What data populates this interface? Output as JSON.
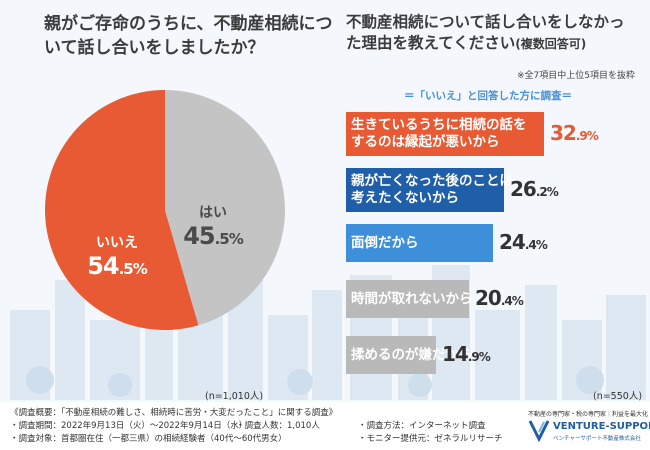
{
  "left_chart": {
    "title": "親がご存命のうちに、不動産相続について話し合いをしましたか？",
    "n_label": "(n=1,010人)"
  },
  "right_chart": {
    "title": "不動産相続について話し合いをしなかった理由を教えてください",
    "title_note": "(複数回答可)",
    "top_note": "※全7項目中上位5項目を抜粋",
    "subject": "＝「いいえ」と回答した方に調査＝",
    "n_label": "(n=550人)"
  },
  "chart_data": [
    {
      "type": "pie",
      "title": "親がご存命のうちに、不動産相続について話し合いをしましたか？",
      "slices": [
        {
          "label": "いいえ",
          "value": 54.5,
          "value_int": "54",
          "value_dec": ".5%",
          "color": "#e85a33"
        },
        {
          "label": "はい",
          "value": 45.5,
          "value_int": "45",
          "value_dec": ".5%",
          "color": "#c4c4c4"
        }
      ]
    },
    {
      "type": "bar",
      "orientation": "horizontal",
      "title": "不動産相続について話し合いをしなかった理由を教えてください",
      "xlim": [
        0,
        35
      ],
      "bars": [
        {
          "lines": [
            "生きているうちに相続の話を",
            "するのは縁起が悪いから"
          ],
          "value": 32.9,
          "value_int": "32",
          "value_dec": ".9%",
          "color": "#e85a33"
        },
        {
          "lines": [
            "親が亡くなった後のことは",
            "考えたくないから"
          ],
          "value": 26.2,
          "value_int": "26",
          "value_dec": ".2%",
          "color": "#1f5ea8"
        },
        {
          "lines": [
            "面倒だから"
          ],
          "value": 24.4,
          "value_int": "24",
          "value_dec": ".4%",
          "color": "#3e8fd9"
        },
        {
          "lines": [
            "時間が取れないから"
          ],
          "value": 20.4,
          "value_int": "20",
          "value_dec": ".4%",
          "color": "#b9b9b9"
        },
        {
          "lines": [
            "揉めるのが嫌だから"
          ],
          "value": 14.9,
          "value_int": "14",
          "value_dec": ".9%",
          "color": "#b9b9b9"
        }
      ]
    }
  ],
  "footer": {
    "survey_overview": "《調査概要：「不動産相続の難しさ、相続時に苦労・大変だったこと」に関する調査》",
    "period": "・調査期間：2022年9月13日（火）〜2022年9月14日（水）",
    "respondents": "・調査人数：1,010人",
    "target": "・調査対象：首都圏在住（一都三県）の相続経験者（40代〜60代男女）",
    "method": "・調査方法：インターネット調査",
    "monitor": "・モニター提供元：ゼネラルリサーチ"
  },
  "logo": {
    "tagline": "不動産の専門家・税の専門家｜利益を最大化",
    "name": "VENTURE-SUPPORT",
    "company": "ベンチャーサポート不動産株式会社"
  },
  "colors": {
    "accent_red": "#e85a33",
    "dark_blue": "#1f5ea8",
    "mid_blue": "#3e8fd9",
    "gray": "#b9b9b9",
    "subject_blue": "#4a8fd6"
  }
}
